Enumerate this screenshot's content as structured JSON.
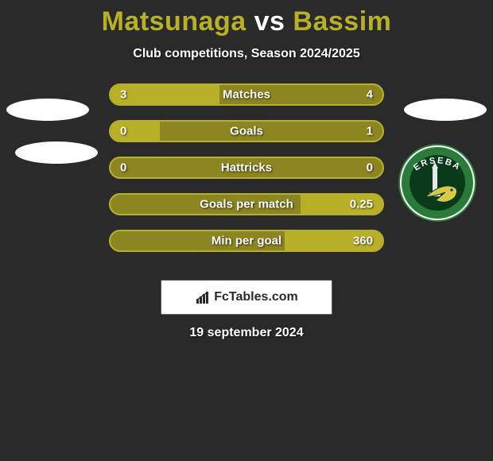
{
  "title": {
    "player1": "Matsunaga",
    "vs": "vs",
    "player2": "Bassim"
  },
  "subtitle": "Club competitions, Season 2024/2025",
  "colors": {
    "background": "#2a2a2a",
    "bar_track": "#8c8522",
    "bar_fill": "#b9b029",
    "bar_border": "#b9b029",
    "text_white": "#ffffff",
    "title_accent": "#b9b029"
  },
  "bars": [
    {
      "label": "Matches",
      "left_val": "3",
      "right_val": "4",
      "left_pct": 40,
      "right_pct": 0
    },
    {
      "label": "Goals",
      "left_val": "0",
      "right_val": "1",
      "left_pct": 18,
      "right_pct": 0
    },
    {
      "label": "Hattricks",
      "left_val": "0",
      "right_val": "0",
      "left_pct": 0,
      "right_pct": 0
    },
    {
      "label": "Goals per match",
      "left_val": "",
      "right_val": "0.25",
      "left_pct": 0,
      "right_pct": 30
    },
    {
      "label": "Min per goal",
      "left_val": "",
      "right_val": "360",
      "left_pct": 0,
      "right_pct": 36
    }
  ],
  "logo_text": "FcTables.com",
  "date": "19 september 2024",
  "badge": {
    "outer_color": "#2a7a3a",
    "ring_color": "#ffffff",
    "inner_color": "#0a3a1a",
    "text": "ERSEBA",
    "text_color": "#ffffff",
    "accent_color": "#d9c94a"
  }
}
